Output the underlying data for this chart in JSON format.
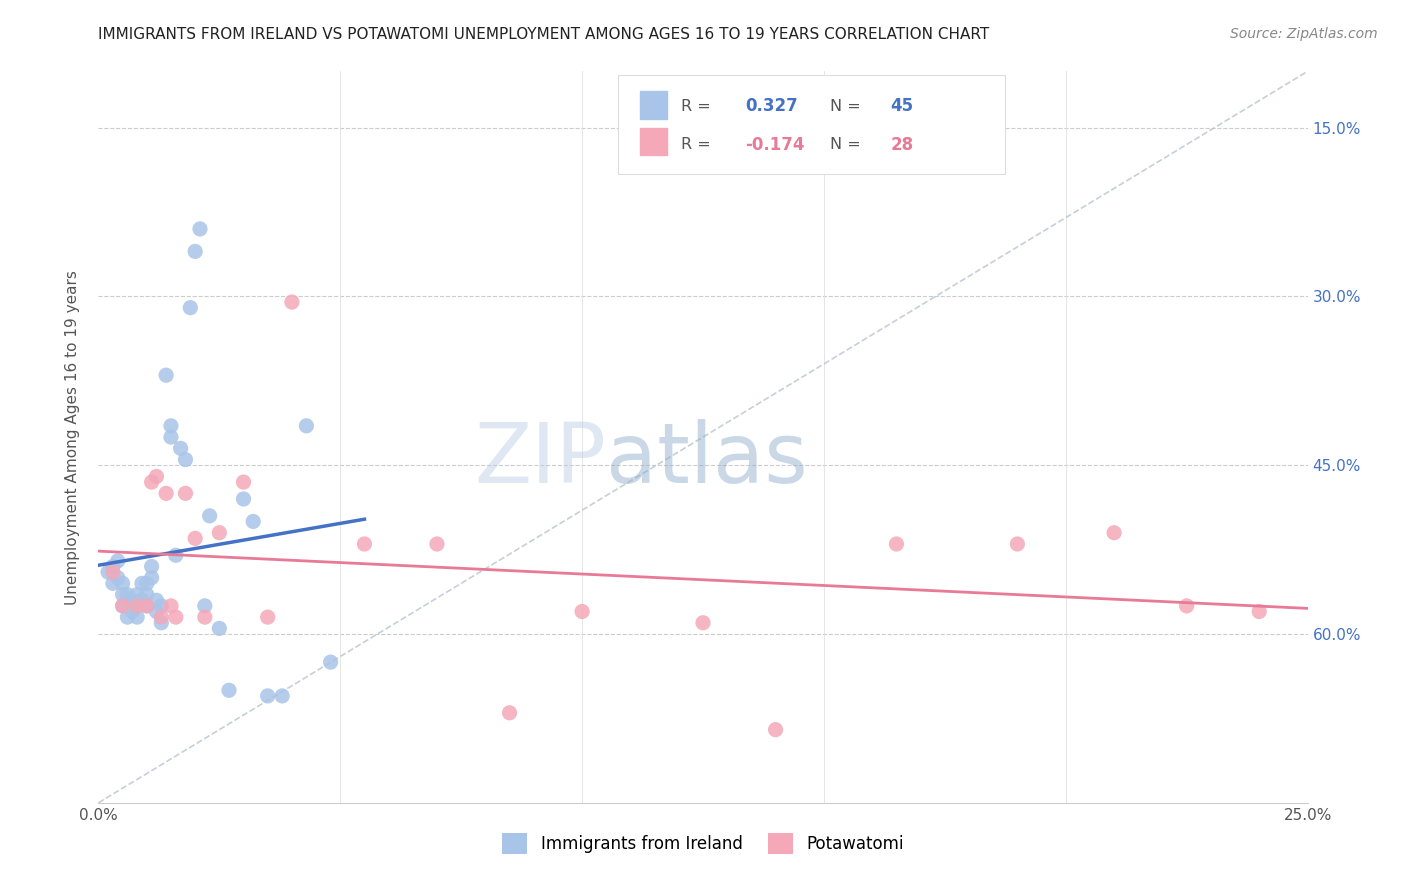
{
  "title": "IMMIGRANTS FROM IRELAND VS POTAWATOMI UNEMPLOYMENT AMONG AGES 16 TO 19 YEARS CORRELATION CHART",
  "source": "Source: ZipAtlas.com",
  "ylabel": "Unemployment Among Ages 16 to 19 years",
  "yaxis_labels": [
    "60.0%",
    "45.0%",
    "30.0%",
    "15.0%"
  ],
  "xlim": [
    0.0,
    0.25
  ],
  "ylim": [
    0.0,
    0.65
  ],
  "yticks": [
    0.15,
    0.3,
    0.45,
    0.6
  ],
  "xticks": [
    0.0,
    0.05,
    0.1,
    0.15,
    0.2,
    0.25
  ],
  "ireland_color": "#a8c4e8",
  "potawatomi_color": "#f4a8b8",
  "ireland_line_color": "#4472c4",
  "potawatomi_line_color": "#e87a96",
  "dashed_line_color": "#b8c4d0",
  "r_ireland": 0.327,
  "n_ireland": 45,
  "r_potawatomi": -0.174,
  "n_potawatomi": 28,
  "watermark_zip": "ZIP",
  "watermark_atlas": "atlas",
  "background_color": "#ffffff",
  "ireland_scatter_x": [
    0.002,
    0.003,
    0.003,
    0.004,
    0.004,
    0.005,
    0.005,
    0.005,
    0.006,
    0.006,
    0.007,
    0.007,
    0.008,
    0.008,
    0.008,
    0.009,
    0.009,
    0.01,
    0.01,
    0.01,
    0.011,
    0.011,
    0.012,
    0.012,
    0.013,
    0.013,
    0.014,
    0.015,
    0.015,
    0.016,
    0.017,
    0.018,
    0.019,
    0.02,
    0.021,
    0.022,
    0.023,
    0.025,
    0.027,
    0.03,
    0.032,
    0.035,
    0.038,
    0.043,
    0.048
  ],
  "ireland_scatter_y": [
    0.205,
    0.195,
    0.21,
    0.215,
    0.2,
    0.185,
    0.175,
    0.195,
    0.165,
    0.185,
    0.17,
    0.18,
    0.175,
    0.185,
    0.165,
    0.18,
    0.195,
    0.175,
    0.185,
    0.195,
    0.2,
    0.21,
    0.17,
    0.18,
    0.175,
    0.16,
    0.38,
    0.325,
    0.335,
    0.22,
    0.315,
    0.305,
    0.44,
    0.49,
    0.51,
    0.175,
    0.255,
    0.155,
    0.1,
    0.27,
    0.25,
    0.095,
    0.095,
    0.335,
    0.125
  ],
  "potawatomi_scatter_x": [
    0.003,
    0.005,
    0.008,
    0.01,
    0.011,
    0.012,
    0.013,
    0.014,
    0.015,
    0.016,
    0.018,
    0.02,
    0.022,
    0.025,
    0.03,
    0.035,
    0.04,
    0.055,
    0.07,
    0.085,
    0.1,
    0.125,
    0.14,
    0.165,
    0.19,
    0.21,
    0.225,
    0.24
  ],
  "potawatomi_scatter_y": [
    0.205,
    0.175,
    0.175,
    0.175,
    0.285,
    0.29,
    0.165,
    0.275,
    0.175,
    0.165,
    0.275,
    0.235,
    0.165,
    0.24,
    0.285,
    0.165,
    0.445,
    0.23,
    0.23,
    0.08,
    0.17,
    0.16,
    0.065,
    0.23,
    0.23,
    0.24,
    0.175,
    0.17
  ],
  "legend_label_ireland": "Immigrants from Ireland",
  "legend_label_potawatomi": "Potawatomi"
}
